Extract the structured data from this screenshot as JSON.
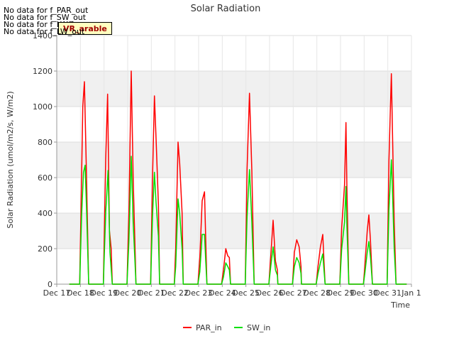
{
  "chart_data": {
    "type": "line",
    "title": "Solar Radiation",
    "xlabel": "Time",
    "ylabel": "Solar Radiation (umol/m2/s, W/m2)",
    "ylim": [
      0,
      1400
    ],
    "yticks": [
      0,
      200,
      400,
      600,
      800,
      1000,
      1200,
      1400
    ],
    "xlim": [
      0,
      15
    ],
    "xtick_labels": [
      "Dec 17",
      "Dec 18",
      "Dec 19",
      "Dec 20",
      "Dec 21",
      "Dec 22",
      "Dec 23",
      "Dec 24",
      "Dec 25",
      "Dec 26",
      "Dec 27",
      "Dec 28",
      "Dec 29",
      "Dec 30",
      "Dec 31",
      "Jan 1"
    ],
    "grid": true,
    "legend_position": "bottom-center",
    "no_data_messages": [
      "No data for f_PAR_out",
      "No data for f_SW_out",
      "No data for f_LW_in",
      "No data for f_LW_out"
    ],
    "badge_text": "VR_arable",
    "series": [
      {
        "name": "PAR_in",
        "color": "#ff0000",
        "peaks": [
          [
            [
              0.3,
              600
            ],
            [
              0.35,
              1000
            ],
            [
              0.42,
              1140
            ],
            [
              0.5,
              650
            ]
          ],
          [
            [
              0.32,
              700
            ],
            [
              0.4,
              1070
            ],
            [
              0.48,
              300
            ],
            [
              0.55,
              200
            ]
          ],
          [
            [
              0.3,
              400
            ],
            [
              0.4,
              1200
            ],
            [
              0.48,
              600
            ]
          ],
          [
            [
              0.3,
              600
            ],
            [
              0.38,
              1060
            ],
            [
              0.45,
              820
            ],
            [
              0.55,
              450
            ]
          ],
          [
            [
              0.28,
              200
            ],
            [
              0.38,
              800
            ],
            [
              0.45,
              680
            ],
            [
              0.55,
              400
            ]
          ],
          [
            [
              0.3,
              150
            ],
            [
              0.4,
              470
            ],
            [
              0.5,
              520
            ],
            [
              0.55,
              250
            ]
          ],
          [
            [
              0.3,
              80
            ],
            [
              0.4,
              200
            ],
            [
              0.48,
              160
            ],
            [
              0.55,
              150
            ]
          ],
          [
            [
              0.3,
              650
            ],
            [
              0.4,
              1075
            ],
            [
              0.5,
              640
            ]
          ],
          [
            [
              0.3,
              160
            ],
            [
              0.4,
              360
            ],
            [
              0.5,
              130
            ],
            [
              0.58,
              80
            ]
          ],
          [
            [
              0.3,
              180
            ],
            [
              0.4,
              250
            ],
            [
              0.5,
              210
            ],
            [
              0.58,
              100
            ]
          ],
          [
            [
              0.3,
              100
            ],
            [
              0.4,
              210
            ],
            [
              0.5,
              280
            ],
            [
              0.55,
              130
            ]
          ],
          [
            [
              0.3,
              320
            ],
            [
              0.42,
              560
            ],
            [
              0.48,
              910
            ],
            [
              0.52,
              550
            ]
          ],
          [
            [
              0.28,
              100
            ],
            [
              0.38,
              300
            ],
            [
              0.45,
              390
            ],
            [
              0.52,
              240
            ]
          ],
          [
            [
              0.3,
              700
            ],
            [
              0.4,
              1185
            ],
            [
              0.45,
              850
            ],
            [
              0.52,
              350
            ]
          ]
        ]
      },
      {
        "name": "SW_in",
        "color": "#00e000",
        "peaks": [
          [
            [
              0.3,
              380
            ],
            [
              0.38,
              630
            ],
            [
              0.45,
              670
            ],
            [
              0.52,
              380
            ]
          ],
          [
            [
              0.32,
              400
            ],
            [
              0.42,
              640
            ],
            [
              0.5,
              180
            ]
          ],
          [
            [
              0.3,
              240
            ],
            [
              0.4,
              720
            ],
            [
              0.48,
              350
            ]
          ],
          [
            [
              0.3,
              380
            ],
            [
              0.38,
              630
            ],
            [
              0.45,
              460
            ],
            [
              0.55,
              270
            ]
          ],
          [
            [
              0.28,
              100
            ],
            [
              0.38,
              480
            ],
            [
              0.45,
              400
            ],
            [
              0.55,
              200
            ]
          ],
          [
            [
              0.3,
              70
            ],
            [
              0.4,
              280
            ],
            [
              0.5,
              280
            ],
            [
              0.55,
              130
            ]
          ],
          [
            [
              0.3,
              40
            ],
            [
              0.4,
              120
            ],
            [
              0.48,
              100
            ],
            [
              0.55,
              80
            ]
          ],
          [
            [
              0.3,
              380
            ],
            [
              0.4,
              645
            ],
            [
              0.5,
              350
            ]
          ],
          [
            [
              0.3,
              100
            ],
            [
              0.4,
              210
            ],
            [
              0.5,
              80
            ],
            [
              0.58,
              50
            ]
          ],
          [
            [
              0.3,
              100
            ],
            [
              0.4,
              150
            ],
            [
              0.5,
              120
            ],
            [
              0.58,
              60
            ]
          ],
          [
            [
              0.3,
              60
            ],
            [
              0.4,
              120
            ],
            [
              0.5,
              170
            ],
            [
              0.55,
              80
            ]
          ],
          [
            [
              0.3,
              200
            ],
            [
              0.42,
              350
            ],
            [
              0.48,
              550
            ],
            [
              0.52,
              330
            ]
          ],
          [
            [
              0.28,
              60
            ],
            [
              0.38,
              180
            ],
            [
              0.45,
              240
            ],
            [
              0.52,
              150
            ]
          ],
          [
            [
              0.3,
              420
            ],
            [
              0.4,
              700
            ],
            [
              0.45,
              520
            ],
            [
              0.52,
              200
            ]
          ]
        ]
      }
    ]
  }
}
